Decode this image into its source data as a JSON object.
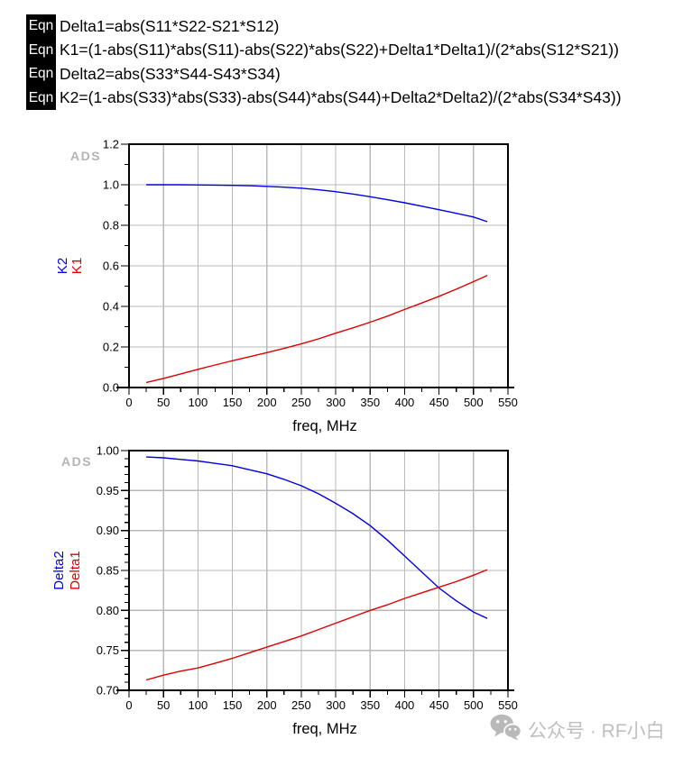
{
  "equations": {
    "label": "Eqn",
    "items": [
      "Delta1=abs(S11*S22-S21*S12)",
      "K1=(1-abs(S11)*abs(S11)-abs(S22)*abs(S22)+Delta1*Delta1)/(2*abs(S12*S21))",
      "Delta2=abs(S33*S44-S43*S34)",
      "K2=(1-abs(S33)*abs(S33)-abs(S44)*abs(S44)+Delta2*Delta2)/(2*abs(S34*S43))"
    ]
  },
  "colors": {
    "trace_blue": "#0000dd",
    "trace_red": "#dd0000",
    "grid": "#b9b9b9",
    "axis": "#000000",
    "ads_watermark": "#b4b4b4",
    "footer": "#bfbfbf"
  },
  "chart_data": [
    {
      "type": "line",
      "watermark": "ADS",
      "xlabel": "freq, MHz",
      "xlim": [
        0,
        550
      ],
      "xticks": [
        0,
        50,
        100,
        150,
        200,
        250,
        300,
        350,
        400,
        450,
        500,
        550
      ],
      "xtick_labels": [
        "0",
        "50",
        "100",
        "150",
        "200",
        "250",
        "300",
        "350",
        "400",
        "450",
        "500",
        "550"
      ],
      "x_minor_step": 25,
      "ylim": [
        0.0,
        1.2
      ],
      "yticks": [
        0.0,
        0.2,
        0.4,
        0.6,
        0.8,
        1.0,
        1.2
      ],
      "ytick_labels": [
        "0.0",
        "0.2",
        "0.4",
        "0.6",
        "0.8",
        "1.0",
        "1.2"
      ],
      "y_minor_step": 0.1,
      "grid": true,
      "y_axis_labels": [
        {
          "text": "K2",
          "color": "#0000dd"
        },
        {
          "text": "K1",
          "color": "#dd0000"
        }
      ],
      "x": [
        25,
        50,
        75,
        100,
        125,
        150,
        175,
        200,
        225,
        250,
        275,
        300,
        325,
        350,
        375,
        400,
        425,
        450,
        475,
        500,
        520
      ],
      "series": [
        {
          "name": "K2",
          "color": "#0000dd",
          "values": [
            1.0,
            1.0,
            1.0,
            0.999,
            0.998,
            0.997,
            0.995,
            0.992,
            0.988,
            0.983,
            0.975,
            0.966,
            0.954,
            0.941,
            0.926,
            0.911,
            0.894,
            0.877,
            0.859,
            0.841,
            0.818
          ]
        },
        {
          "name": "K1",
          "color": "#dd0000",
          "values": [
            0.025,
            0.045,
            0.067,
            0.09,
            0.111,
            0.132,
            0.152,
            0.172,
            0.193,
            0.215,
            0.24,
            0.268,
            0.294,
            0.322,
            0.352,
            0.385,
            0.417,
            0.45,
            0.485,
            0.522,
            0.553
          ]
        }
      ]
    },
    {
      "type": "line",
      "watermark": "ADS",
      "xlabel": "freq, MHz",
      "xlim": [
        0,
        550
      ],
      "xticks": [
        0,
        50,
        100,
        150,
        200,
        250,
        300,
        350,
        400,
        450,
        500,
        550
      ],
      "xtick_labels": [
        "0",
        "50",
        "100",
        "150",
        "200",
        "250",
        "300",
        "350",
        "400",
        "450",
        "500",
        "550"
      ],
      "x_minor_step": 25,
      "ylim": [
        0.7,
        1.0
      ],
      "yticks": [
        0.7,
        0.75,
        0.8,
        0.85,
        0.9,
        0.95,
        1.0
      ],
      "ytick_labels": [
        "0.70",
        "0.75",
        "0.80",
        "0.85",
        "0.90",
        "0.95",
        "1.00"
      ],
      "y_minor_step": 0.01,
      "grid": true,
      "y_axis_labels": [
        {
          "text": "Delta2",
          "color": "#0000dd"
        },
        {
          "text": "Delta1",
          "color": "#dd0000"
        }
      ],
      "x": [
        25,
        50,
        75,
        100,
        125,
        150,
        175,
        200,
        225,
        250,
        275,
        300,
        325,
        350,
        375,
        400,
        425,
        450,
        475,
        500,
        520
      ],
      "series": [
        {
          "name": "Delta2",
          "color": "#0000dd",
          "values": [
            0.992,
            0.991,
            0.989,
            0.987,
            0.984,
            0.981,
            0.976,
            0.971,
            0.964,
            0.956,
            0.946,
            0.934,
            0.921,
            0.906,
            0.888,
            0.868,
            0.848,
            0.828,
            0.812,
            0.798,
            0.79
          ]
        },
        {
          "name": "Delta1",
          "color": "#dd0000",
          "values": [
            0.713,
            0.719,
            0.724,
            0.728,
            0.734,
            0.74,
            0.747,
            0.754,
            0.761,
            0.768,
            0.776,
            0.784,
            0.792,
            0.8,
            0.807,
            0.815,
            0.822,
            0.829,
            0.836,
            0.844,
            0.851
          ]
        }
      ]
    }
  ],
  "footer": {
    "brand": "公众号 · RF小白",
    "icon": "wechat-icon"
  }
}
